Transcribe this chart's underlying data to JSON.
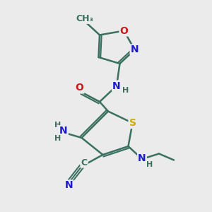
{
  "bg_color": "#ebebeb",
  "bond_color": "#3a7060",
  "bond_width": 1.8,
  "atom_colors": {
    "C": "#3a7060",
    "N": "#1a1acc",
    "O": "#cc1a1a",
    "S": "#ccaa00",
    "H": "#3a7060"
  },
  "font_size": 10,
  "font_size_small": 9,
  "font_size_H": 8
}
